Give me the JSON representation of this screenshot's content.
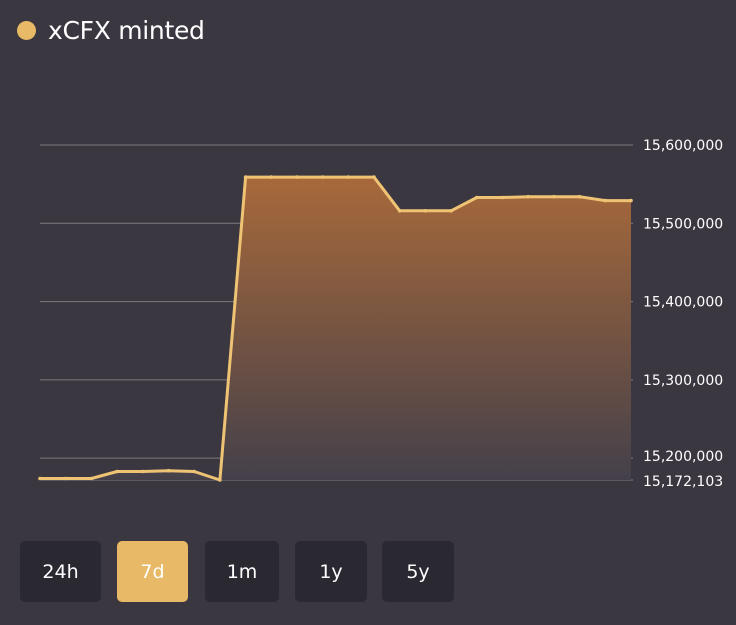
{
  "header": {
    "title": "xCFX minted",
    "dot_color": "#e8b967"
  },
  "colors": {
    "background": "#3a3740",
    "line": "#efc374",
    "area_top": "#a8693a",
    "area_bottom": "#44404a",
    "grid": "#7d7a80",
    "tick_label": "#ffffff",
    "button_bg": "#2a2830",
    "button_active_bg": "#e8b967"
  },
  "range_buttons": [
    {
      "label": "24h",
      "active": false
    },
    {
      "label": "7d",
      "active": true
    },
    {
      "label": "1m",
      "active": false
    },
    {
      "label": "1y",
      "active": false
    },
    {
      "label": "5y",
      "active": false
    }
  ],
  "chart_data": {
    "type": "area",
    "title": "xCFX minted",
    "xlabel": "",
    "ylabel": "",
    "ylim": [
      15172103,
      15600000
    ],
    "y_axis_position": "right",
    "grid": true,
    "y_ticks": [
      15172103,
      15200000,
      15300000,
      15400000,
      15500000,
      15600000
    ],
    "y_tick_labels": [
      "15,172,103",
      "15,200,000",
      "15,300,000",
      "15,400,000",
      "15,500,000",
      "15,600,000"
    ],
    "x": [
      1,
      2,
      3,
      4,
      5,
      6,
      7,
      8,
      9,
      10,
      11,
      12,
      13,
      14,
      15,
      16,
      17,
      18,
      19,
      20,
      21,
      22,
      23,
      24
    ],
    "series": [
      {
        "values": [
          15174000,
          15174000,
          15174000,
          15183000,
          15183000,
          15184000,
          15183000,
          15172103,
          15559000,
          15559000,
          15559000,
          15559000,
          15559000,
          15559000,
          15516000,
          15516000,
          15516000,
          15533000,
          15533000,
          15534000,
          15534000,
          15534000,
          15529000,
          15529000
        ]
      }
    ]
  }
}
